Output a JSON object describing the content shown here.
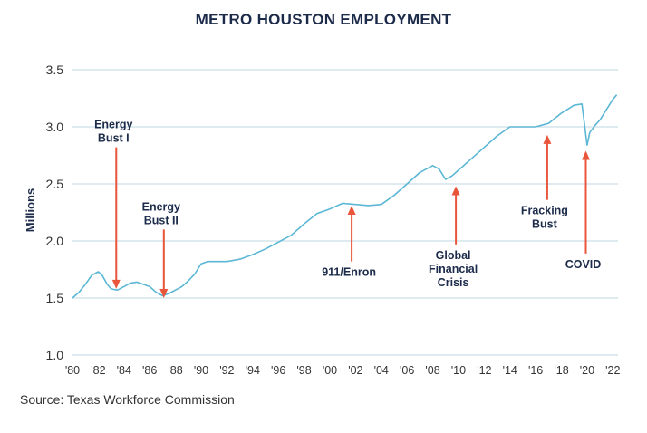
{
  "chart_data": {
    "type": "line",
    "title": "METRO HOUSTON EMPLOYMENT",
    "ylabel": "Millions",
    "ylim": [
      1.0,
      3.5
    ],
    "yticks": [
      "1.0",
      "1.5",
      "2.0",
      "2.5",
      "3.0",
      "3.5"
    ],
    "xlim": [
      1980,
      2022.4
    ],
    "xticks": [
      "'80",
      "'82",
      "'84",
      "'86",
      "'88",
      "'90",
      "'92",
      "'94",
      "'96",
      "'98",
      "'00",
      "'02",
      "'04",
      "'06",
      "'08",
      "'10",
      "'12",
      "'14",
      "'16",
      "'18",
      "'20",
      "'22"
    ],
    "grid": "horizontal",
    "line_color": "#5bb7d5",
    "arrow_color": "#e8553a",
    "series": [
      {
        "x": [
          1980,
          1980.5,
          1981,
          1981.5,
          1982,
          1982.3,
          1982.7,
          1983,
          1983.5,
          1984,
          1984.5,
          1985,
          1985.5,
          1986,
          1986.5,
          1987,
          1987.5,
          1988,
          1988.5,
          1989,
          1989.5,
          1990,
          1990.5,
          1991,
          1992,
          1993,
          1994,
          1995,
          1996,
          1997,
          1998,
          1999,
          2000,
          2001,
          2002,
          2003,
          2004,
          2005,
          2006,
          2007,
          2008,
          2008.5,
          2009,
          2009.5,
          2010,
          2011,
          2012,
          2013,
          2014,
          2015,
          2016,
          2017,
          2018,
          2019,
          2019.6,
          2020.0,
          2020.2,
          2020.6,
          2021,
          2021.5,
          2022,
          2022.3
        ],
        "y": [
          1.5,
          1.55,
          1.62,
          1.7,
          1.73,
          1.7,
          1.62,
          1.58,
          1.57,
          1.6,
          1.63,
          1.64,
          1.62,
          1.6,
          1.55,
          1.52,
          1.54,
          1.57,
          1.6,
          1.65,
          1.71,
          1.8,
          1.82,
          1.82,
          1.82,
          1.84,
          1.88,
          1.93,
          1.99,
          2.05,
          2.15,
          2.24,
          2.28,
          2.33,
          2.32,
          2.31,
          2.32,
          2.4,
          2.5,
          2.6,
          2.66,
          2.63,
          2.54,
          2.57,
          2.62,
          2.72,
          2.82,
          2.92,
          3.0,
          3.0,
          3.0,
          3.03,
          3.12,
          3.19,
          3.2,
          2.84,
          2.95,
          3.01,
          3.06,
          3.15,
          3.24,
          3.28
        ]
      }
    ],
    "annotations": [
      {
        "lines": [
          "Energy",
          "Bust I"
        ],
        "x": 1983.4,
        "y_head": 1.58,
        "y_tail": 2.82
      },
      {
        "lines": [
          "Energy",
          "Bust II"
        ],
        "x": 1987.1,
        "y_head": 1.5,
        "y_tail": 2.1
      },
      {
        "lines": [
          "911/Enron"
        ],
        "x": 2001.7,
        "y_head": 2.31,
        "y_tail": 1.82
      },
      {
        "lines": [
          "Global",
          "Financial",
          "Crisis"
        ],
        "x": 2009.8,
        "y_head": 2.48,
        "y_tail": 1.97
      },
      {
        "lines": [
          "Fracking",
          "Bust"
        ],
        "x": 2016.9,
        "y_head": 2.93,
        "y_tail": 2.36
      },
      {
        "lines": [
          "COVID"
        ],
        "x": 2019.9,
        "y_head": 2.79,
        "y_tail": 1.89
      }
    ]
  },
  "source": "Source: Texas Workforce Commission"
}
